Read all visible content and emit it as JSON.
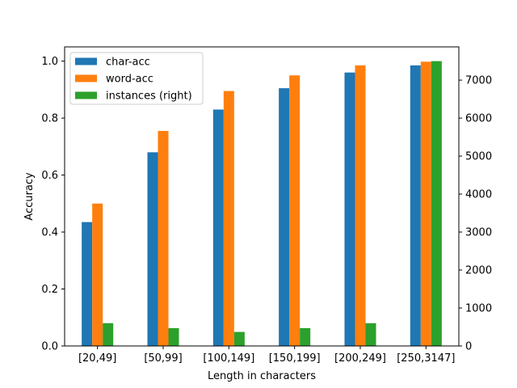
{
  "chart_data": {
    "type": "bar",
    "categories": [
      "[20,49]",
      "[50,99]",
      "[100,149]",
      "[150,199]",
      "[200,249]",
      "[250,3147]"
    ],
    "xlabel": "Length in characters",
    "ylabel": "Accuracy",
    "ylim": [
      0,
      1.05
    ],
    "y2lim": [
      0,
      7875
    ],
    "y_ticks": [
      0.0,
      0.2,
      0.4,
      0.6,
      0.8,
      1.0
    ],
    "y_tick_labels": [
      "0.0",
      "0.2",
      "0.4",
      "0.6",
      "0.8",
      "1.0"
    ],
    "y2_ticks": [
      0,
      1000,
      2000,
      3000,
      4000,
      5000,
      6000,
      7000
    ],
    "y2_tick_labels": [
      "0",
      "1000",
      "2000",
      "3000",
      "4000",
      "5000",
      "6000",
      "7000"
    ],
    "grid": false,
    "legend_position": "top-left",
    "series": [
      {
        "name": "char-acc",
        "axis": "left",
        "color": "#1f77b4",
        "values": [
          0.435,
          0.68,
          0.83,
          0.905,
          0.96,
          0.985
        ]
      },
      {
        "name": "word-acc",
        "axis": "left",
        "color": "#ff7f0e",
        "values": [
          0.5,
          0.755,
          0.895,
          0.95,
          0.985,
          0.998
        ]
      },
      {
        "name": "instances (right)",
        "axis": "right",
        "color": "#2ca02c",
        "values": [
          600,
          470,
          370,
          470,
          600,
          7500
        ]
      }
    ]
  }
}
